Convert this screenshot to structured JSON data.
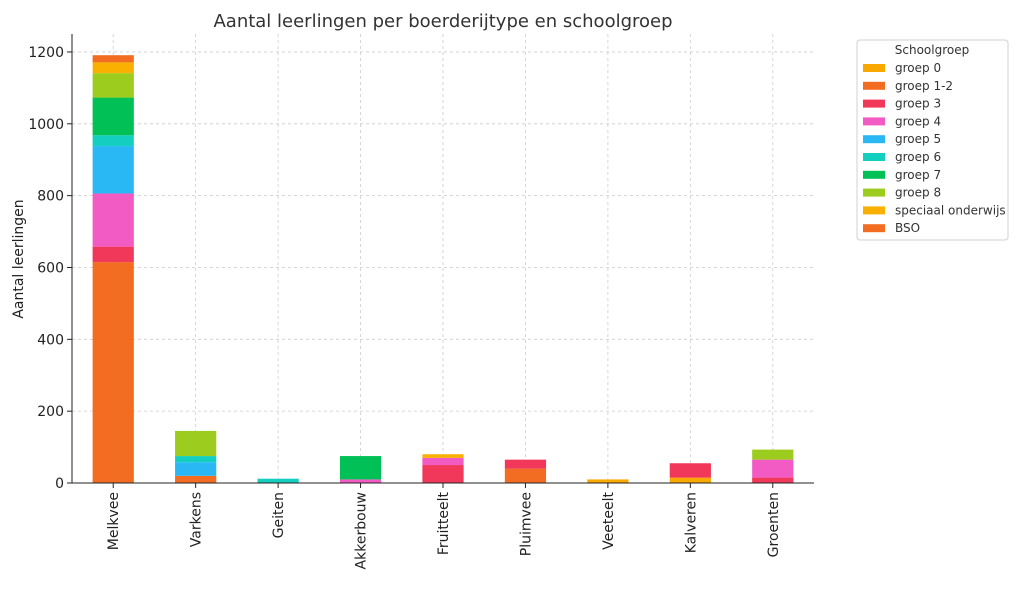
{
  "chart_data": {
    "type": "bar",
    "stacked": true,
    "title": "Aantal leerlingen per boerderijtype en schoolgroep",
    "xlabel": "",
    "ylabel": "Aantal leerlingen",
    "ylim": [
      0,
      1250
    ],
    "yticks": [
      0,
      200,
      400,
      600,
      800,
      1000,
      1200
    ],
    "grid": true,
    "legend_title": "Schoolgroep",
    "legend_position": "right",
    "categories": [
      "Melkvee",
      "Varkens",
      "Geiten",
      "Akkerbouw",
      "Fruitteelt",
      "Pluimvee",
      "Veeteelt",
      "Kalveren",
      "Groenten"
    ],
    "series": [
      {
        "name": "groep 0",
        "color": "#f9a800",
        "values": [
          0,
          0,
          0,
          0,
          0,
          0,
          10,
          15,
          0
        ]
      },
      {
        "name": "groep 1-2",
        "color": "#f26d21",
        "values": [
          615,
          20,
          0,
          0,
          0,
          40,
          0,
          0,
          0
        ]
      },
      {
        "name": "groep 3",
        "color": "#f2385a",
        "values": [
          43,
          0,
          0,
          0,
          50,
          25,
          0,
          40,
          15
        ]
      },
      {
        "name": "groep 4",
        "color": "#f25ac4",
        "values": [
          148,
          0,
          0,
          10,
          20,
          0,
          0,
          0,
          50
        ]
      },
      {
        "name": "groep 5",
        "color": "#2ab8f5",
        "values": [
          132,
          38,
          0,
          0,
          0,
          0,
          0,
          0,
          0
        ]
      },
      {
        "name": "groep 6",
        "color": "#14cfc0",
        "values": [
          30,
          17,
          12,
          0,
          0,
          0,
          0,
          0,
          0
        ]
      },
      {
        "name": "groep 7",
        "color": "#00c056",
        "values": [
          105,
          0,
          0,
          65,
          0,
          0,
          0,
          0,
          0
        ]
      },
      {
        "name": "groep 8",
        "color": "#9ccc1e",
        "values": [
          68,
          70,
          0,
          0,
          0,
          0,
          0,
          0,
          28
        ]
      },
      {
        "name": "speciaal onderwijs",
        "color": "#f9b000",
        "values": [
          30,
          0,
          0,
          0,
          10,
          0,
          0,
          0,
          0
        ]
      },
      {
        "name": "BSO",
        "color": "#f26d21",
        "values": [
          20,
          0,
          0,
          0,
          0,
          0,
          0,
          0,
          0
        ]
      }
    ]
  }
}
